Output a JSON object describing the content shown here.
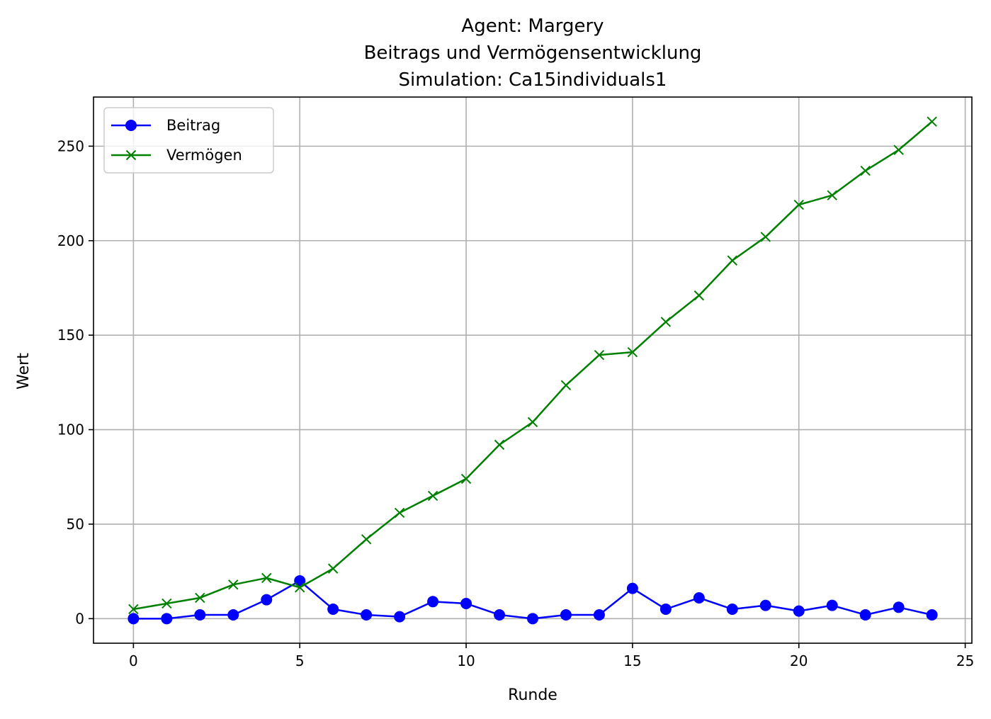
{
  "chart_data": {
    "type": "line",
    "title_lines": [
      "Agent: Margery",
      "Beitrags und Vermögensentwicklung",
      "Simulation: Ca15individuals1"
    ],
    "xlabel": "Runde",
    "ylabel": "Wert",
    "xlim": [
      -1.2,
      25.2
    ],
    "ylim": [
      -13,
      276
    ],
    "xticks": [
      0,
      5,
      10,
      15,
      20,
      25
    ],
    "yticks": [
      0,
      50,
      100,
      150,
      200,
      250
    ],
    "grid": true,
    "legend_position": "top-left",
    "x": [
      0,
      1,
      2,
      3,
      4,
      5,
      6,
      7,
      8,
      9,
      10,
      11,
      12,
      13,
      14,
      15,
      16,
      17,
      18,
      19,
      20,
      21,
      22,
      23,
      24
    ],
    "series": [
      {
        "name": "Beitrag",
        "color": "#0000ff",
        "marker": "circle",
        "values": [
          0,
          0,
          2,
          2,
          10,
          20,
          5,
          2,
          1,
          9,
          8,
          2,
          0,
          2,
          2,
          16,
          5,
          11,
          5,
          7,
          4,
          7,
          2,
          6,
          2
        ]
      },
      {
        "name": "Vermögen",
        "color": "#008000",
        "marker": "x",
        "values": [
          5,
          8,
          11,
          18,
          21.5,
          16.5,
          26.5,
          42,
          56,
          65,
          74,
          92,
          104,
          123.5,
          139.5,
          141,
          157,
          171,
          189.5,
          202,
          219,
          224,
          237,
          248,
          263
        ]
      }
    ]
  }
}
